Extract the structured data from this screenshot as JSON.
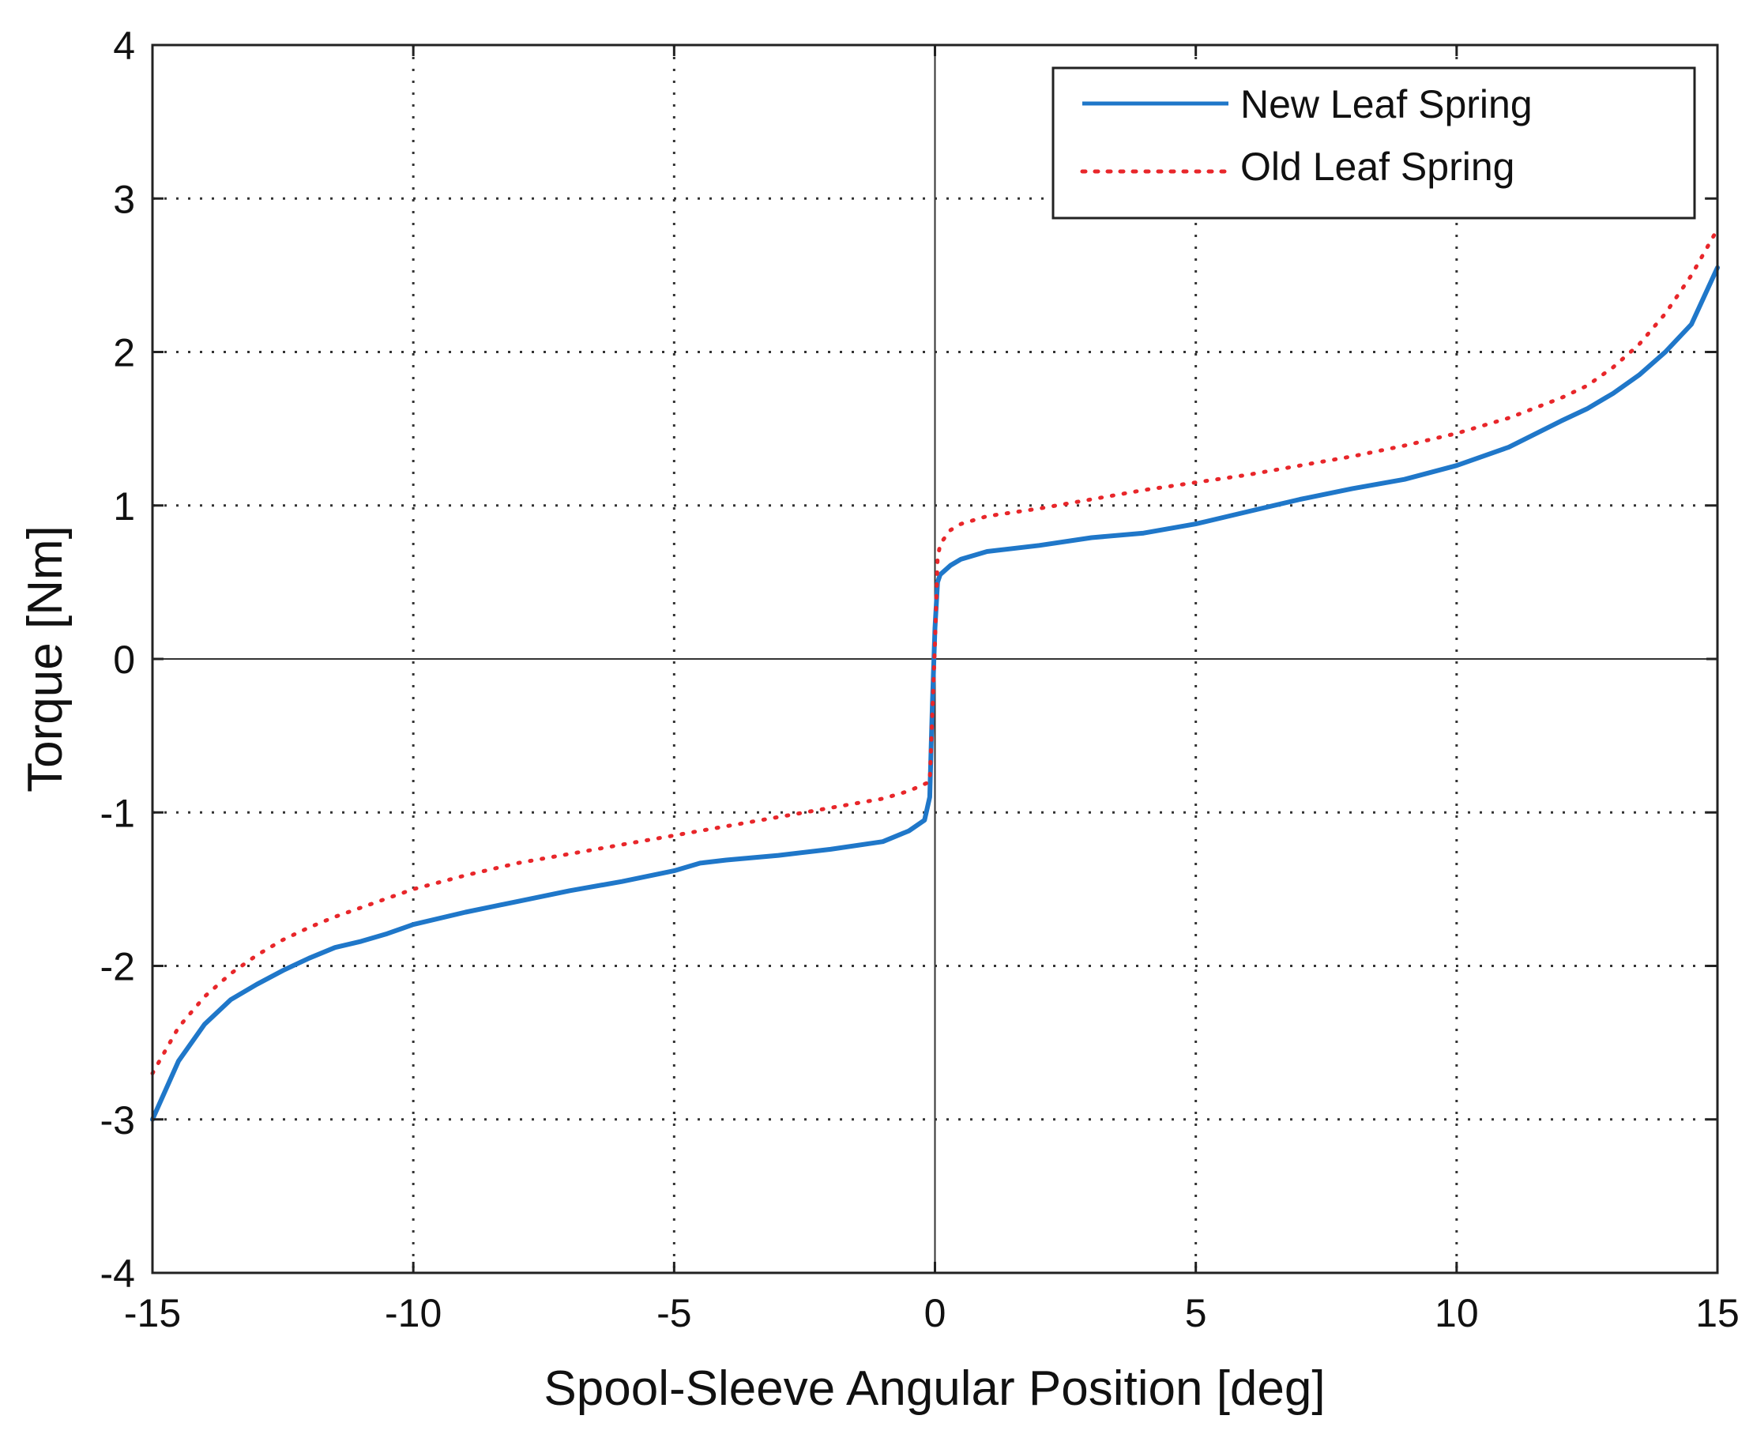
{
  "chart_data": {
    "type": "line",
    "title": "",
    "xlabel": "Spool-Sleeve Angular Position [deg]",
    "ylabel": "Torque [Nm]",
    "xlim": [
      -15,
      15
    ],
    "ylim": [
      -4,
      4
    ],
    "xticks": [
      -15,
      -10,
      -5,
      0,
      5,
      10,
      15
    ],
    "yticks": [
      -4,
      -3,
      -2,
      -1,
      0,
      1,
      2,
      3,
      4
    ],
    "grid": true,
    "legend_position": "top-right",
    "series": [
      {
        "name": "New Leaf Spring",
        "color": "#1f77c9",
        "style": "solid",
        "x": [
          -15,
          -14.5,
          -14,
          -13.5,
          -13,
          -12.5,
          -12,
          -11.5,
          -11,
          -10.5,
          -10,
          -9,
          -8,
          -7,
          -6,
          -5,
          -4.5,
          -4,
          -3,
          -2,
          -1,
          -0.5,
          -0.2,
          -0.1,
          -0.05,
          0,
          0.05,
          0.1,
          0.3,
          0.5,
          1,
          2,
          3,
          4,
          5,
          6,
          7,
          8,
          9,
          10,
          11,
          12,
          12.5,
          13,
          13.5,
          14,
          14.5,
          15
        ],
        "y": [
          -3.0,
          -2.62,
          -2.38,
          -2.22,
          -2.12,
          -2.03,
          -1.95,
          -1.88,
          -1.84,
          -1.79,
          -1.73,
          -1.65,
          -1.58,
          -1.51,
          -1.45,
          -1.38,
          -1.33,
          -1.31,
          -1.28,
          -1.24,
          -1.19,
          -1.12,
          -1.05,
          -0.9,
          -0.3,
          0.2,
          0.5,
          0.55,
          0.61,
          0.65,
          0.7,
          0.74,
          0.79,
          0.82,
          0.88,
          0.96,
          1.04,
          1.11,
          1.17,
          1.26,
          1.38,
          1.55,
          1.63,
          1.73,
          1.85,
          2.0,
          2.18,
          2.55
        ]
      },
      {
        "name": "Old Leaf Spring",
        "color": "#e8262a",
        "style": "dotted",
        "x": [
          -15,
          -14.5,
          -14,
          -13.5,
          -13,
          -12.5,
          -12,
          -11.5,
          -11,
          -10.5,
          -10,
          -9,
          -8,
          -7,
          -6,
          -5,
          -4,
          -3,
          -2,
          -1,
          -0.5,
          -0.1,
          0,
          0.05,
          0.1,
          0.3,
          0.5,
          1,
          2,
          3,
          4,
          5,
          6,
          7,
          8,
          9,
          10,
          11,
          12,
          12.5,
          13,
          13.5,
          14,
          14.5,
          15
        ],
        "y": [
          -2.7,
          -2.4,
          -2.2,
          -2.05,
          -1.93,
          -1.83,
          -1.75,
          -1.68,
          -1.62,
          -1.56,
          -1.5,
          -1.41,
          -1.33,
          -1.27,
          -1.21,
          -1.15,
          -1.09,
          -1.03,
          -0.97,
          -0.91,
          -0.86,
          -0.8,
          0.1,
          0.65,
          0.75,
          0.84,
          0.88,
          0.93,
          0.98,
          1.04,
          1.1,
          1.15,
          1.2,
          1.26,
          1.32,
          1.39,
          1.47,
          1.57,
          1.7,
          1.78,
          1.9,
          2.05,
          2.25,
          2.5,
          2.8
        ]
      }
    ]
  }
}
